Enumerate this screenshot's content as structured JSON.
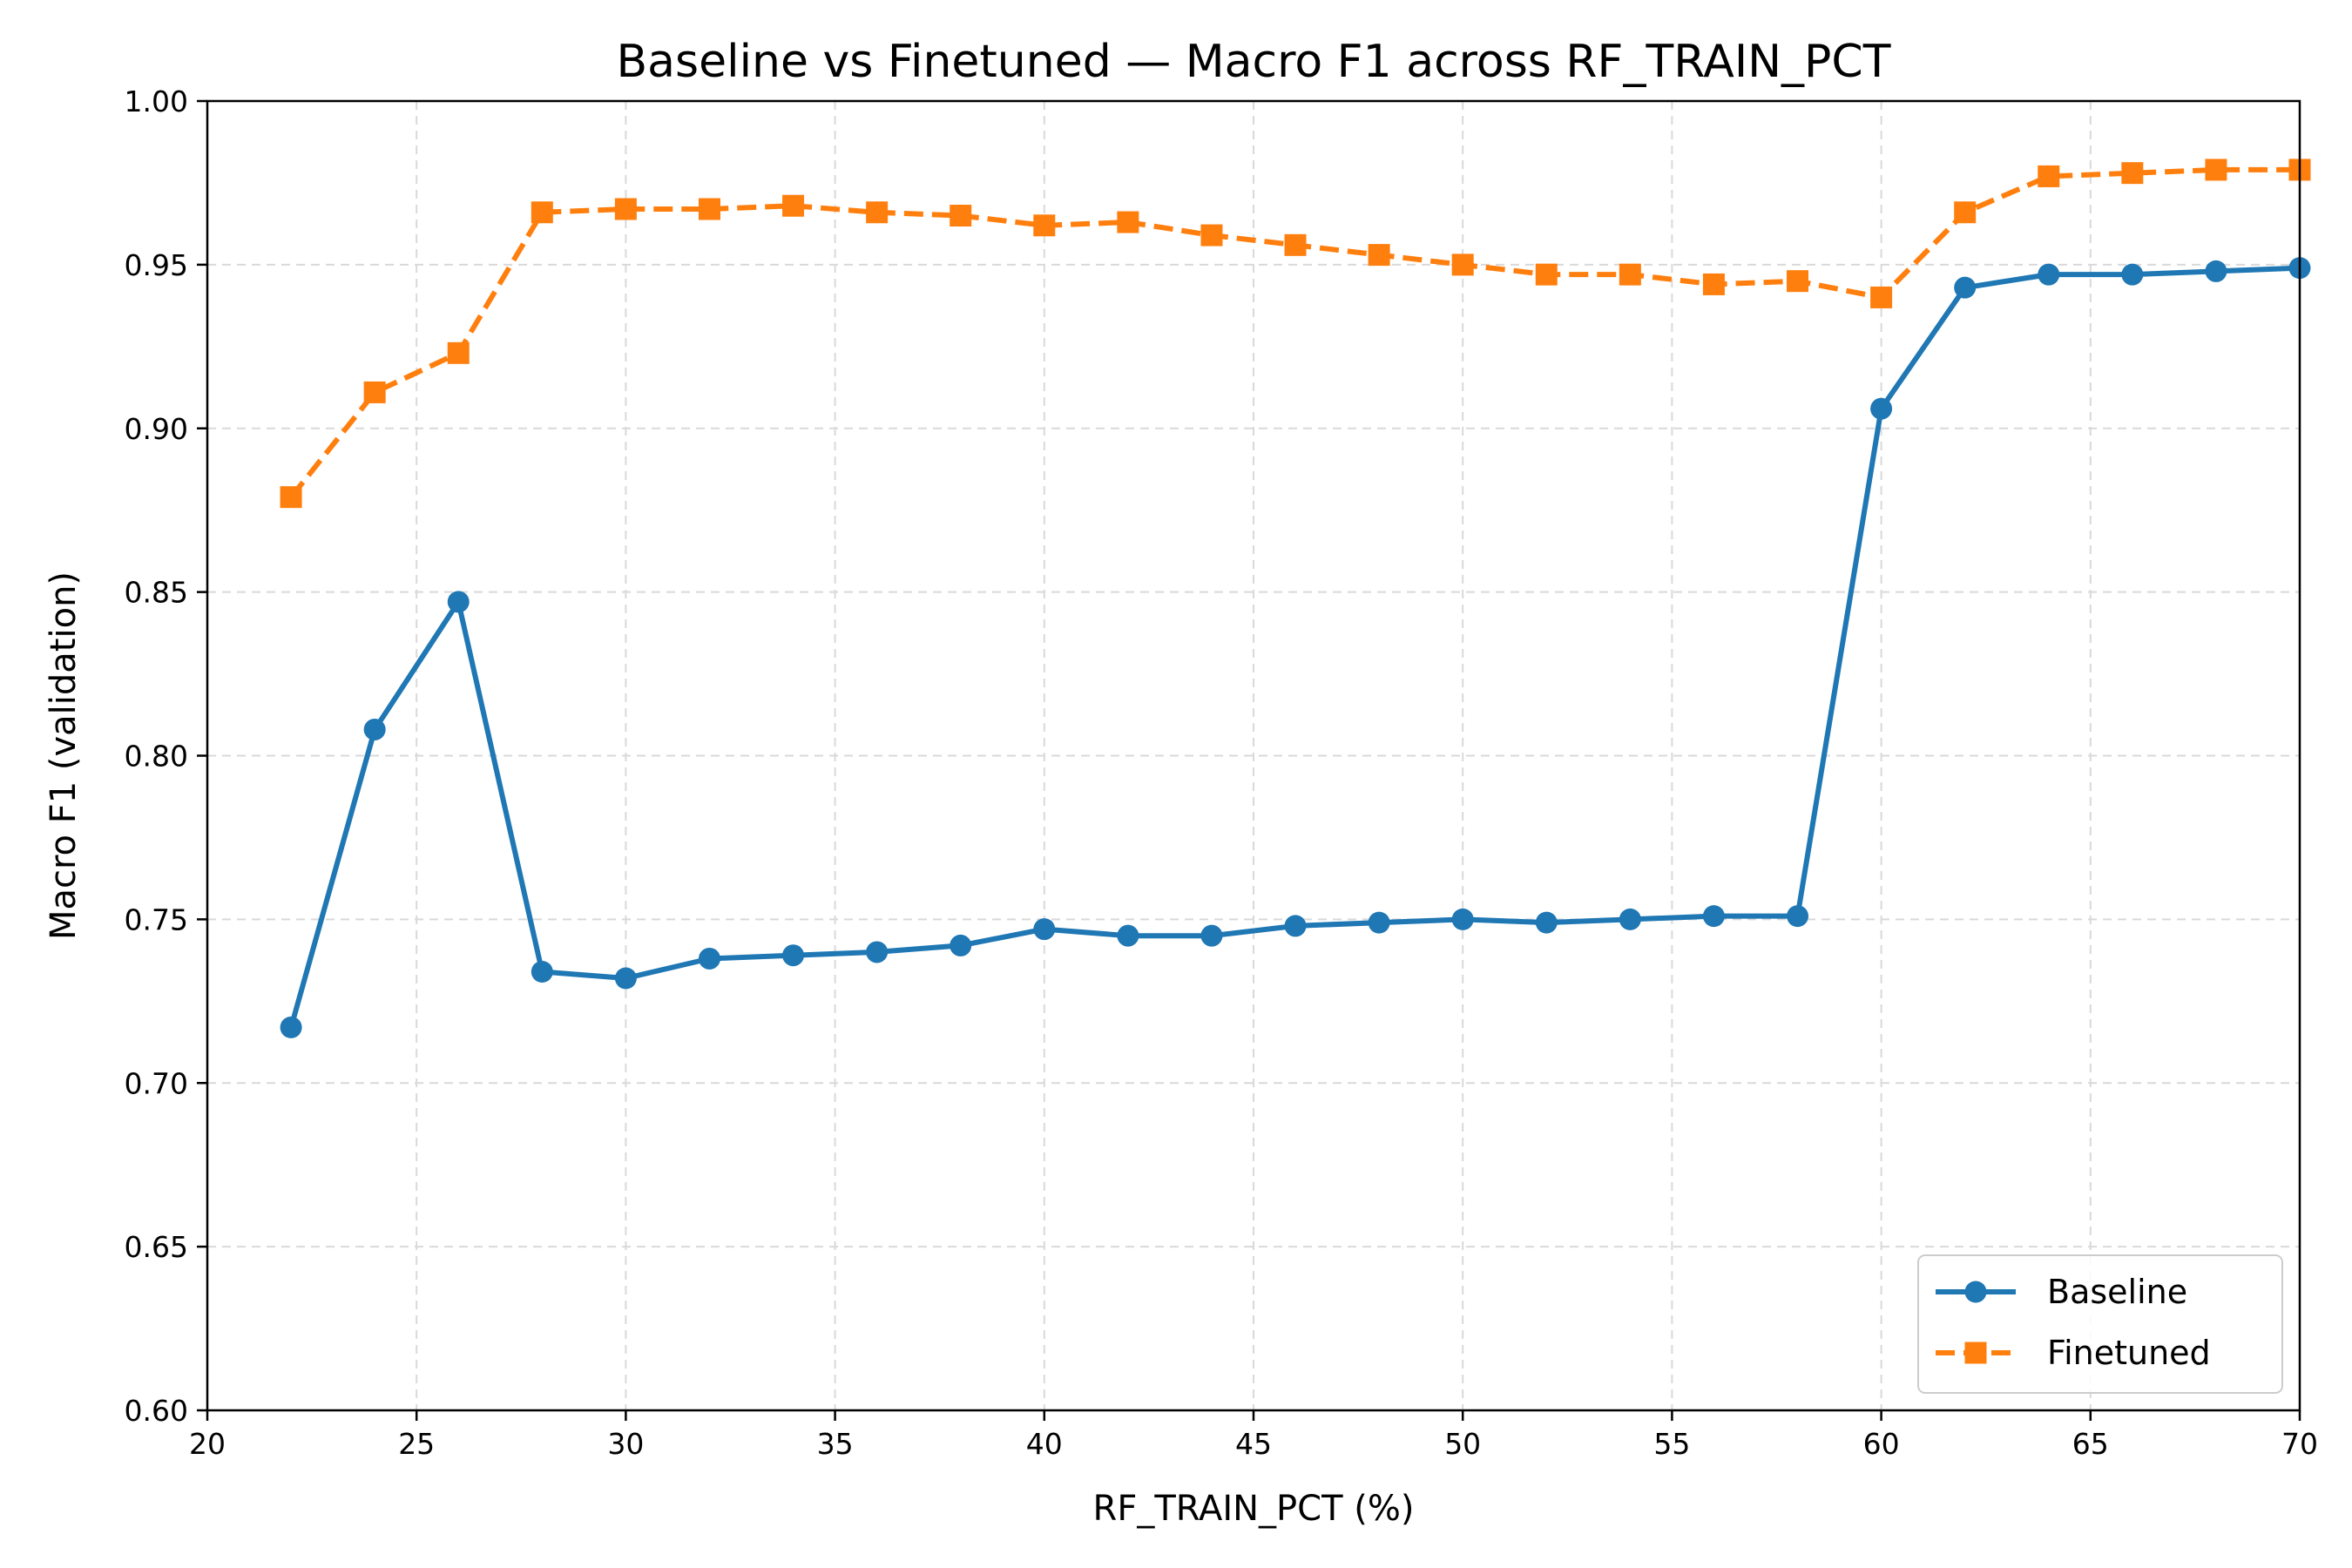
{
  "chart_data": {
    "type": "line",
    "title": "Baseline vs Finetuned — Macro F1 across RF_TRAIN_PCT",
    "xlabel": "RF_TRAIN_PCT (%)",
    "ylabel": "Macro F1 (validation)",
    "xlim": [
      20,
      70
    ],
    "ylim": [
      0.6,
      1.0
    ],
    "x_ticks": [
      20,
      25,
      30,
      35,
      40,
      45,
      50,
      55,
      60,
      65,
      70
    ],
    "x_tick_labels": [
      "20",
      "25",
      "30",
      "35",
      "40",
      "45",
      "50",
      "55",
      "60",
      "65",
      "70"
    ],
    "y_ticks": [
      0.6,
      0.65,
      0.7,
      0.75,
      0.8,
      0.85,
      0.9,
      0.95,
      1.0
    ],
    "y_tick_labels": [
      "0.60",
      "0.65",
      "0.70",
      "0.75",
      "0.80",
      "0.85",
      "0.90",
      "0.95",
      "1.00"
    ],
    "grid": true,
    "legend_position": "bottom-right",
    "x": [
      22,
      24,
      26,
      28,
      30,
      32,
      34,
      36,
      38,
      40,
      42,
      44,
      46,
      48,
      50,
      52,
      54,
      56,
      58,
      60,
      62,
      64,
      66,
      68,
      70
    ],
    "series": [
      {
        "name": "Baseline",
        "color": "#1f77b4",
        "marker": "circle",
        "line_style": "solid",
        "values": [
          0.717,
          0.808,
          0.847,
          0.734,
          0.732,
          0.738,
          0.739,
          0.74,
          0.742,
          0.747,
          0.745,
          0.745,
          0.748,
          0.749,
          0.75,
          0.749,
          0.75,
          0.751,
          0.751,
          0.906,
          0.943,
          0.947,
          0.947,
          0.948,
          0.949
        ]
      },
      {
        "name": "Finetuned",
        "color": "#ff7f0e",
        "marker": "square",
        "line_style": "dashed",
        "values": [
          0.879,
          0.911,
          0.923,
          0.966,
          0.967,
          0.967,
          0.968,
          0.966,
          0.965,
          0.962,
          0.963,
          0.959,
          0.956,
          0.953,
          0.95,
          0.947,
          0.947,
          0.944,
          0.945,
          0.94,
          0.966,
          0.977,
          0.978,
          0.979,
          0.979
        ]
      }
    ]
  }
}
